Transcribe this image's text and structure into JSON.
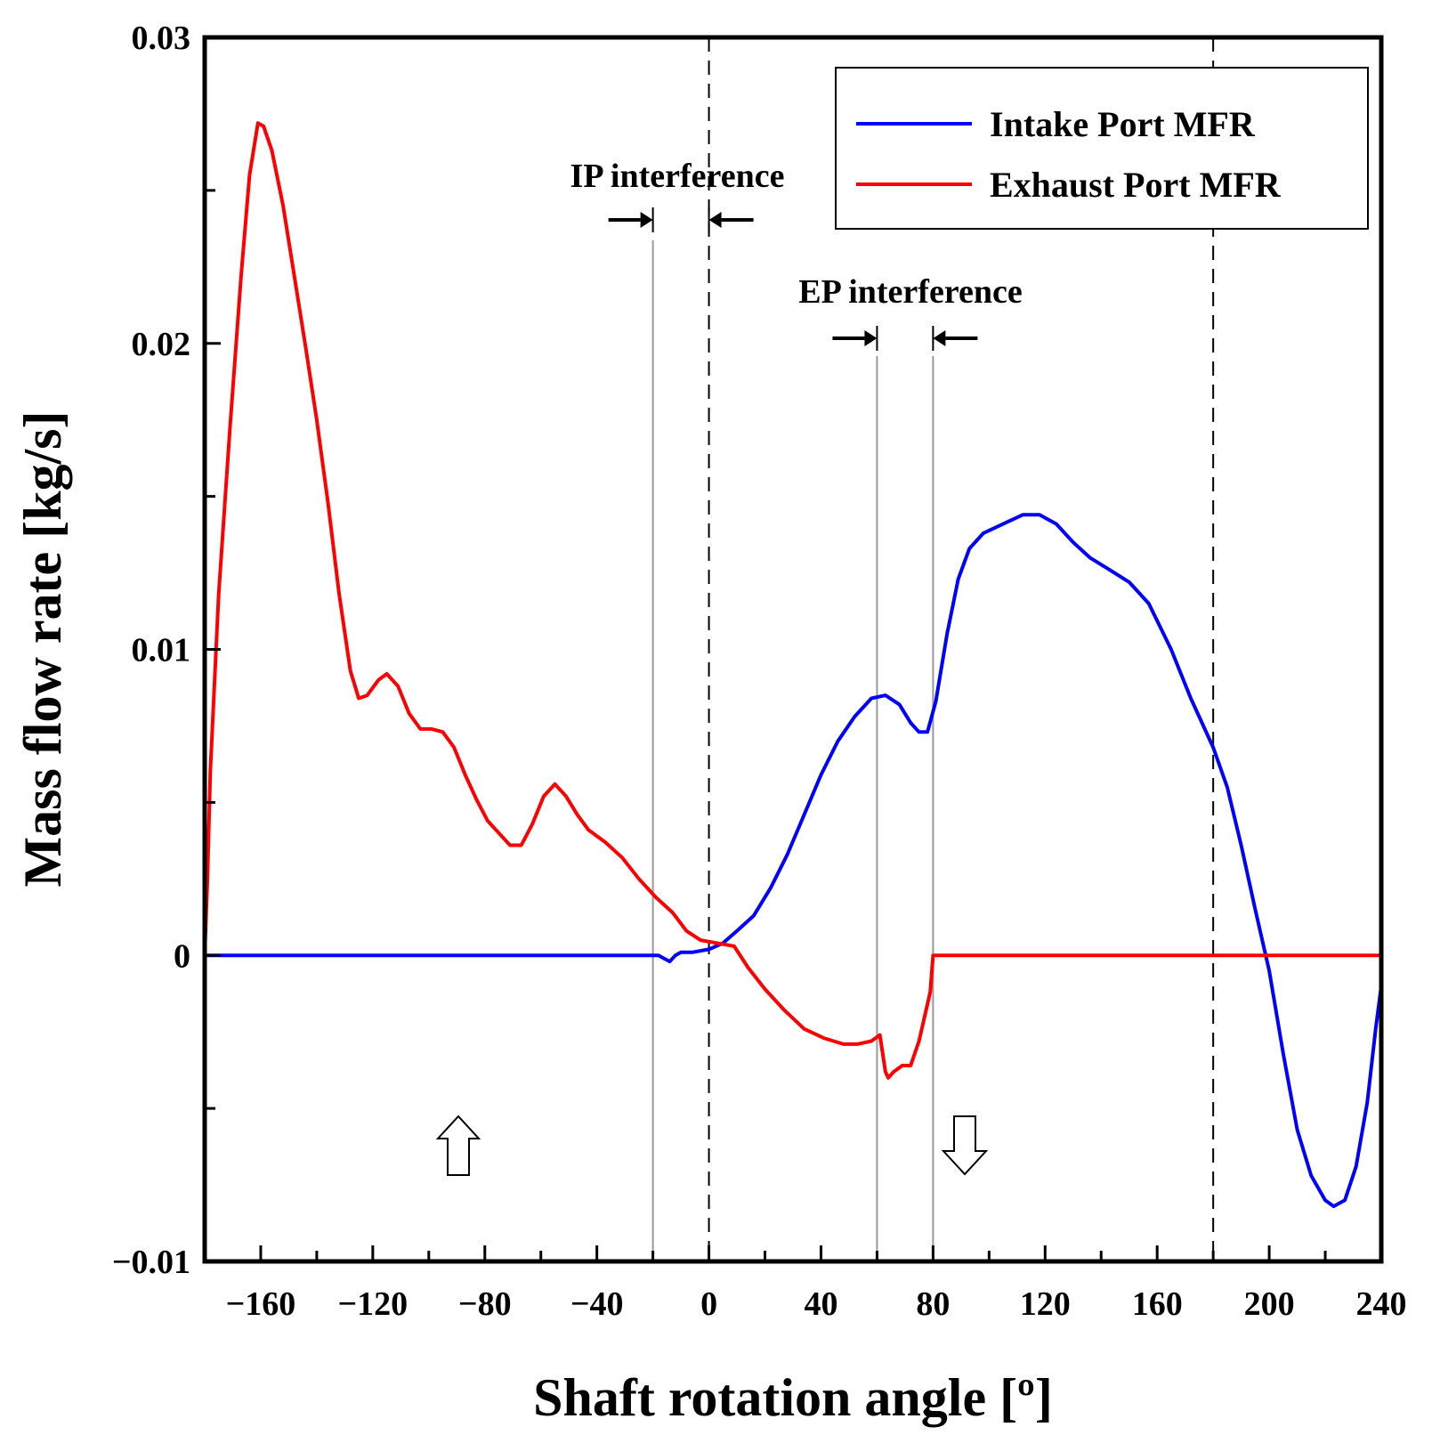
{
  "chart_data": {
    "type": "line",
    "title": "",
    "xlabel": "Shaft  rotation  angle [º]",
    "ylabel": "Mass  flow  rate [kg/s]",
    "xlim": [
      -180,
      240
    ],
    "ylim": [
      -0.01,
      0.03
    ],
    "x_ticks": [
      -160,
      -120,
      -80,
      -40,
      0,
      40,
      80,
      120,
      160,
      200,
      240
    ],
    "x_tick_labels": [
      "−160",
      "−120",
      "−80",
      "−40",
      "0",
      "40",
      "80",
      "120",
      "160",
      "200",
      "240"
    ],
    "x_minor_ticks": [
      -180,
      -140,
      -100,
      -60,
      -20,
      20,
      60,
      100,
      140,
      180,
      220
    ],
    "y_ticks": [
      -0.01,
      0,
      0.01,
      0.02,
      0.03
    ],
    "y_tick_labels": [
      "−0.01",
      "0",
      "0.01",
      "0.02",
      "0.03"
    ],
    "y_minor_ticks": [
      -0.005,
      0.005,
      0.015,
      0.025
    ],
    "grid": false,
    "legend_position": "top-right",
    "series": [
      {
        "name": "Intake Port MFR",
        "color": "#0000ff",
        "points": [
          [
            -180,
            0
          ],
          [
            -20,
            0
          ],
          [
            -18,
            0
          ],
          [
            -16,
            -0.0001
          ],
          [
            -14,
            -0.0002
          ],
          [
            -12,
            0
          ],
          [
            -10,
            0.0001
          ],
          [
            -6,
            0.0001
          ],
          [
            0,
            0.0002
          ],
          [
            5,
            0.0004
          ],
          [
            10,
            0.0008
          ],
          [
            16,
            0.0013
          ],
          [
            22,
            0.0022
          ],
          [
            28,
            0.0033
          ],
          [
            34,
            0.0046
          ],
          [
            40,
            0.0059
          ],
          [
            46,
            0.007
          ],
          [
            52,
            0.0078
          ],
          [
            58,
            0.0084
          ],
          [
            63,
            0.0085
          ],
          [
            68,
            0.0082
          ],
          [
            72,
            0.0076
          ],
          [
            75,
            0.0073
          ],
          [
            78,
            0.0073
          ],
          [
            81,
            0.0083
          ],
          [
            85,
            0.0105
          ],
          [
            89,
            0.0123
          ],
          [
            93,
            0.0133
          ],
          [
            98,
            0.0138
          ],
          [
            105,
            0.0141
          ],
          [
            112,
            0.0144
          ],
          [
            118,
            0.0144
          ],
          [
            124,
            0.0141
          ],
          [
            130,
            0.0135
          ],
          [
            136,
            0.013
          ],
          [
            143,
            0.0126
          ],
          [
            150,
            0.0122
          ],
          [
            157,
            0.0115
          ],
          [
            165,
            0.01
          ],
          [
            172,
            0.0084
          ],
          [
            180,
            0.0068
          ],
          [
            185,
            0.0055
          ],
          [
            190,
            0.0036
          ],
          [
            195,
            0.0015
          ],
          [
            200,
            -0.0005
          ],
          [
            205,
            -0.0032
          ],
          [
            210,
            -0.0057
          ],
          [
            215,
            -0.0072
          ],
          [
            220,
            -0.008
          ],
          [
            223,
            -0.0082
          ],
          [
            227,
            -0.008
          ],
          [
            231,
            -0.0069
          ],
          [
            235,
            -0.0048
          ],
          [
            238,
            -0.0024
          ],
          [
            240,
            -0.001
          ]
        ]
      },
      {
        "name": "Exhaust Port MFR",
        "color": "#ff0000",
        "points": [
          [
            -180,
            0
          ],
          [
            -179,
            0.0025
          ],
          [
            -178,
            0.006
          ],
          [
            -175,
            0.0118
          ],
          [
            -171,
            0.0172
          ],
          [
            -167,
            0.0222
          ],
          [
            -164,
            0.0255
          ],
          [
            -161,
            0.0272
          ],
          [
            -159,
            0.0271
          ],
          [
            -156,
            0.0263
          ],
          [
            -152,
            0.0245
          ],
          [
            -148,
            0.0222
          ],
          [
            -144,
            0.0199
          ],
          [
            -140,
            0.0175
          ],
          [
            -136,
            0.0148
          ],
          [
            -132,
            0.0118
          ],
          [
            -128,
            0.0093
          ],
          [
            -125,
            0.0084
          ],
          [
            -122,
            0.0085
          ],
          [
            -118,
            0.009
          ],
          [
            -115,
            0.0092
          ],
          [
            -111,
            0.0088
          ],
          [
            -107,
            0.0079
          ],
          [
            -103,
            0.0074
          ],
          [
            -99,
            0.0074
          ],
          [
            -95,
            0.0073
          ],
          [
            -91,
            0.0068
          ],
          [
            -87,
            0.0059
          ],
          [
            -83,
            0.0051
          ],
          [
            -79,
            0.0044
          ],
          [
            -75,
            0.004
          ],
          [
            -71,
            0.0036
          ],
          [
            -67,
            0.0036
          ],
          [
            -63,
            0.0043
          ],
          [
            -59,
            0.0052
          ],
          [
            -55,
            0.0056
          ],
          [
            -51,
            0.0052
          ],
          [
            -47,
            0.0046
          ],
          [
            -43,
            0.0041
          ],
          [
            -37,
            0.0037
          ],
          [
            -31,
            0.0032
          ],
          [
            -25,
            0.0025
          ],
          [
            -19,
            0.0019
          ],
          [
            -13,
            0.0014
          ],
          [
            -8,
            0.0008
          ],
          [
            -3,
            0.0005
          ],
          [
            3,
            0.0004
          ],
          [
            9,
            0.0003
          ],
          [
            14,
            -0.0004
          ],
          [
            20,
            -0.0011
          ],
          [
            27,
            -0.0018
          ],
          [
            34,
            -0.0024
          ],
          [
            41,
            -0.0027
          ],
          [
            48,
            -0.0029
          ],
          [
            53,
            -0.0029
          ],
          [
            58,
            -0.0028
          ],
          [
            61,
            -0.0026
          ],
          [
            63,
            -0.0038
          ],
          [
            64,
            -0.004
          ],
          [
            66,
            -0.0038
          ],
          [
            69,
            -0.0036
          ],
          [
            72,
            -0.0036
          ],
          [
            75,
            -0.0028
          ],
          [
            77,
            -0.002
          ],
          [
            79,
            -0.0012
          ],
          [
            80,
            0
          ],
          [
            240,
            0
          ]
        ]
      }
    ],
    "annotations": {
      "ip_interference": {
        "text": "IP interference",
        "range": [
          -20,
          0
        ]
      },
      "ep_interference": {
        "text": "EP interference",
        "range": [
          60,
          80
        ]
      },
      "dashed_lines_x": [
        0,
        180
      ],
      "up_arrow_x": -90,
      "down_arrow_x": 90
    }
  }
}
